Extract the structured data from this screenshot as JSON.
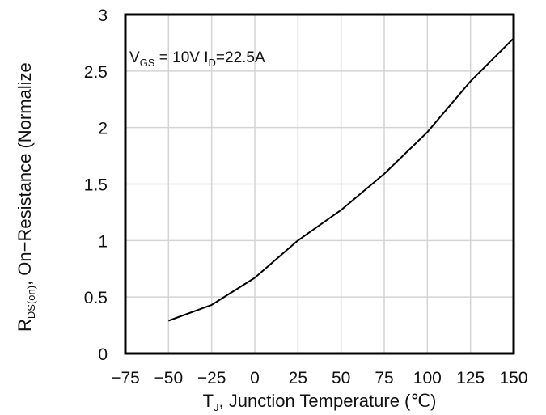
{
  "chart_data": {
    "type": "line",
    "xlabel": {
      "main": "T",
      "sub": "J",
      "rest": ", Junction Temperature (℃)"
    },
    "ylabel": {
      "main": "R",
      "sub": "DS(on)",
      "rest": ", On−Resistance (Normalize"
    },
    "annotation": {
      "v": "V",
      "v_sub": "GS",
      "v_rest": " = 10V I",
      "i_sub": "D",
      "i_rest": "=22.5A"
    },
    "xlim": [
      -75,
      150
    ],
    "ylim": [
      0,
      3
    ],
    "xticks": [
      "−75",
      "−50",
      "−25",
      "0",
      "25",
      "50",
      "75",
      "100",
      "125",
      "150"
    ],
    "yticks": [
      "0",
      "0.5",
      "1",
      "1.5",
      "2",
      "2.5",
      "3"
    ],
    "grid": true,
    "series": [
      {
        "x": [
          -50,
          -25,
          0,
          25,
          50,
          75,
          100,
          125,
          150
        ],
        "y": [
          0.29,
          0.43,
          0.67,
          1.0,
          1.27,
          1.59,
          1.96,
          2.41,
          2.79
        ]
      }
    ]
  }
}
